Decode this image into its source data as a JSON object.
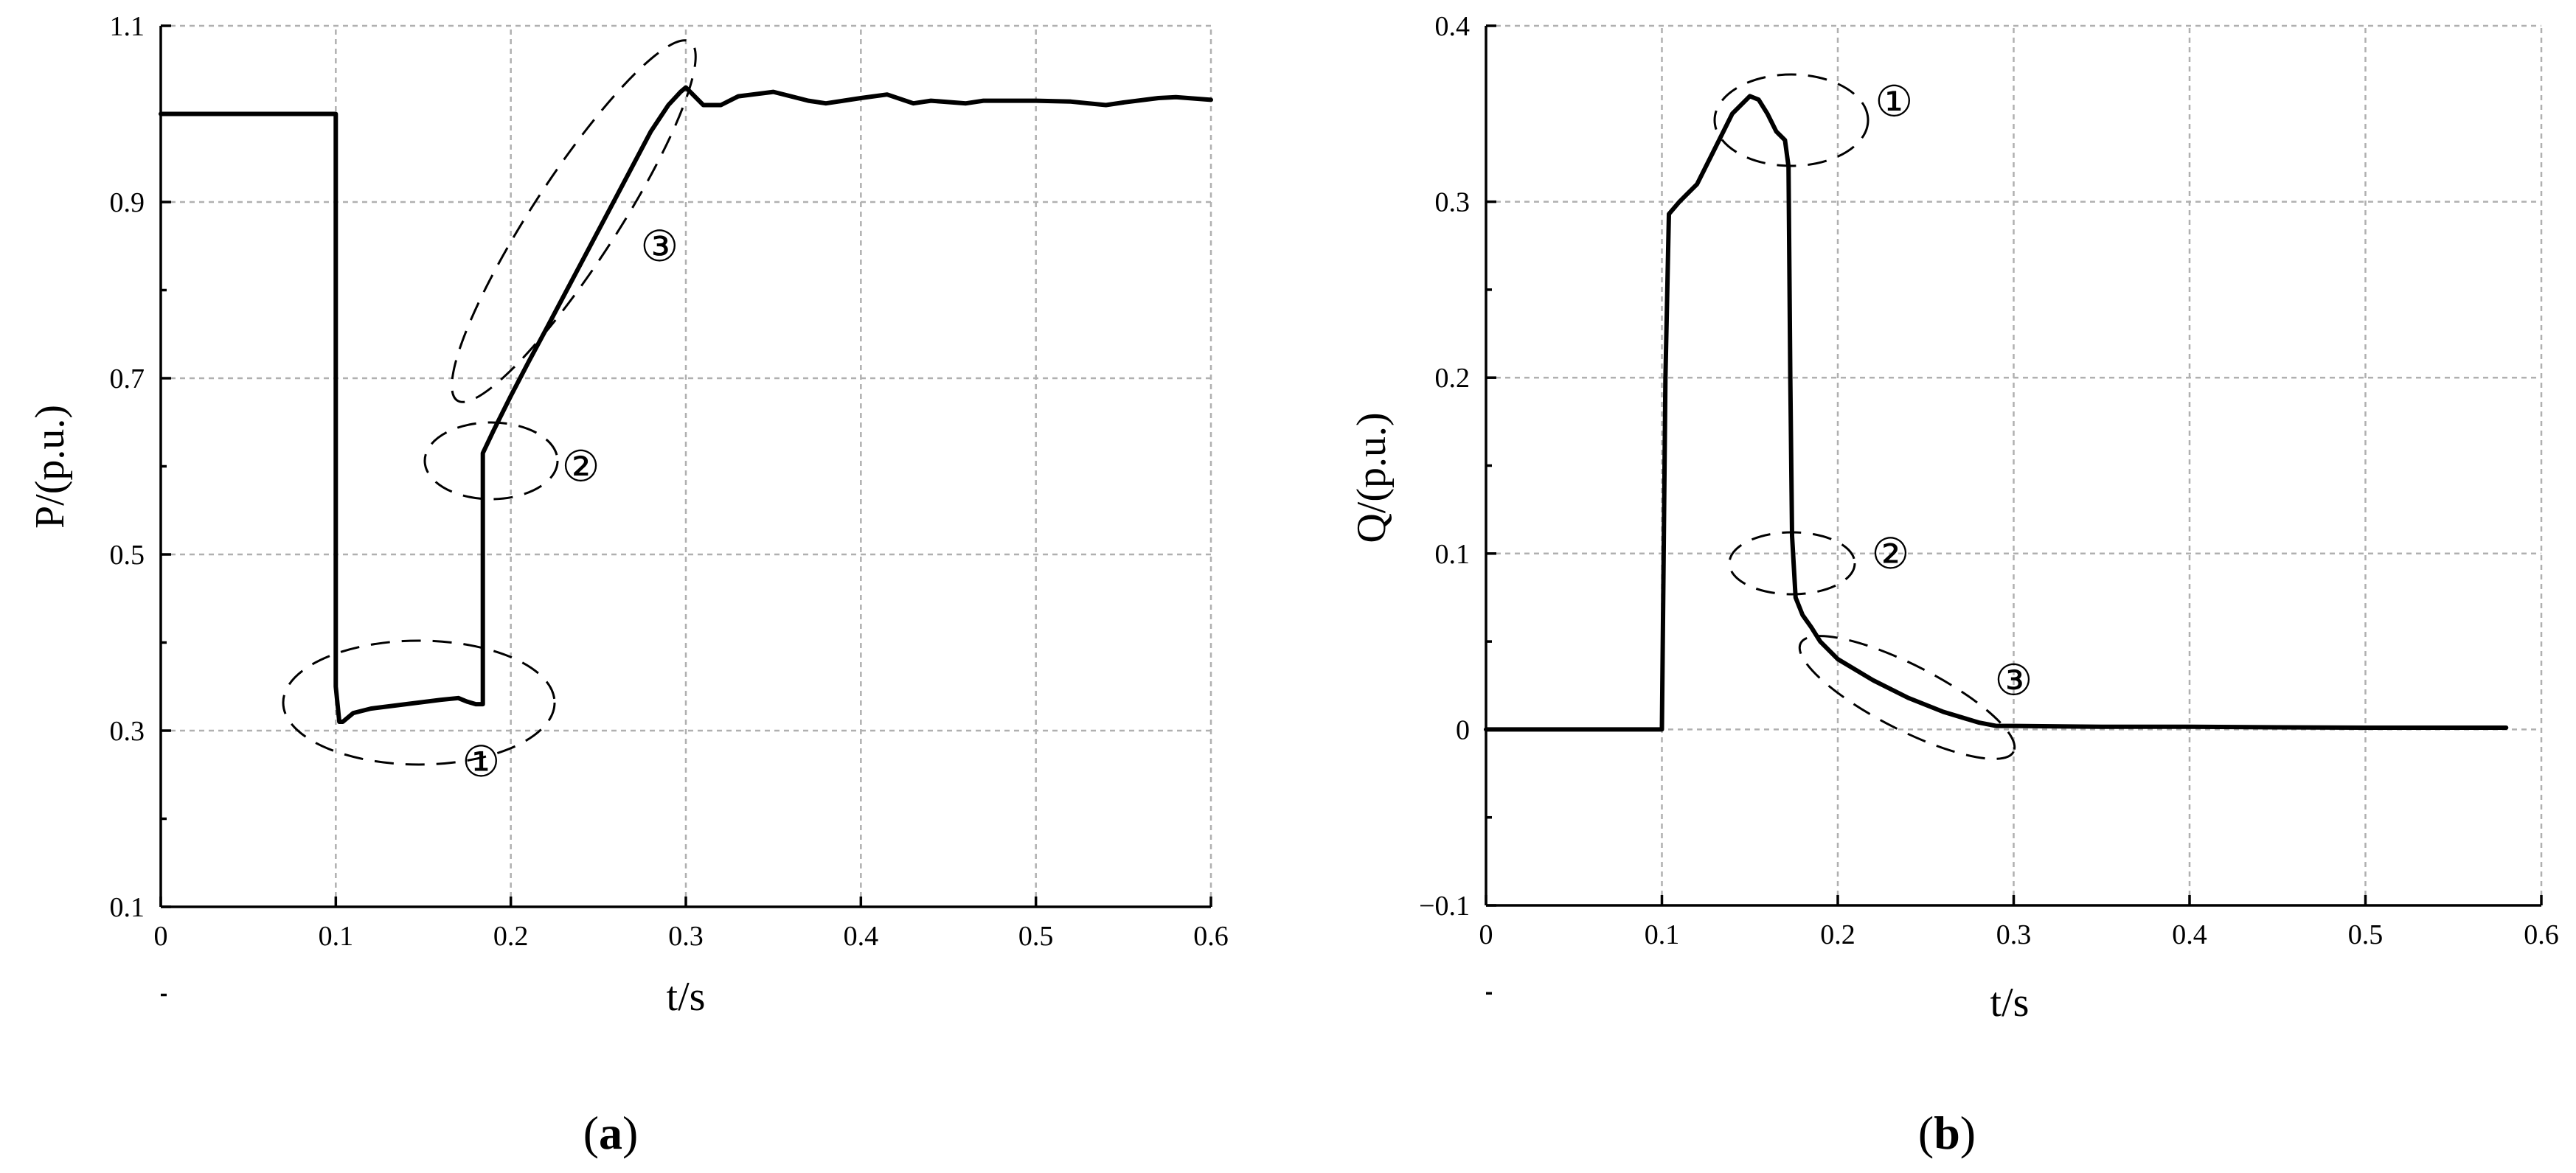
{
  "chart_data": [
    {
      "type": "line",
      "panel_label_prefix": "(",
      "panel_label": "a",
      "panel_label_suffix": ")",
      "xlabel": "t/s",
      "ylabel": "P/(p.u.)",
      "xlim": [
        0,
        0.6
      ],
      "ylim": [
        0.1,
        1.1
      ],
      "xticks": [
        "0",
        "0.1",
        "0.2",
        "0.3",
        "0.4",
        "0.5",
        "0.6"
      ],
      "yticks": [
        "0.1",
        "0.3",
        "0.5",
        "0.7",
        "0.9",
        "1.1"
      ],
      "grid": true,
      "series": [
        {
          "x": [
            0,
            0.1,
            0.1,
            0.102,
            0.104,
            0.11,
            0.12,
            0.14,
            0.16,
            0.17,
            0.175,
            0.18,
            0.184,
            0.184,
            0.19,
            0.2,
            0.21,
            0.22,
            0.24,
            0.26,
            0.28,
            0.29,
            0.297,
            0.3,
            0.305,
            0.31,
            0.32,
            0.33,
            0.35,
            0.37,
            0.38,
            0.4,
            0.415,
            0.43,
            0.44,
            0.46,
            0.47,
            0.5,
            0.52,
            0.54,
            0.55,
            0.57,
            0.58,
            0.6
          ],
          "y": [
            1.0,
            1.0,
            0.35,
            0.31,
            0.31,
            0.32,
            0.325,
            0.33,
            0.335,
            0.337,
            0.333,
            0.33,
            0.33,
            0.615,
            0.64,
            0.68,
            0.718,
            0.755,
            0.83,
            0.905,
            0.98,
            1.01,
            1.025,
            1.03,
            1.02,
            1.01,
            1.01,
            1.02,
            1.025,
            1.015,
            1.012,
            1.018,
            1.022,
            1.012,
            1.015,
            1.012,
            1.015,
            1.015,
            1.014,
            1.01,
            1.013,
            1.018,
            1.019,
            1.016
          ]
        }
      ],
      "annotations": [
        {
          "text": "①",
          "x": 0.183,
          "y": 0.265
        },
        {
          "text": "②",
          "x": 0.24,
          "y": 0.6
        },
        {
          "text": "③",
          "x": 0.285,
          "y": 0.85
        }
      ]
    },
    {
      "type": "line",
      "panel_label_prefix": "(",
      "panel_label": "b",
      "panel_label_suffix": ")",
      "xlabel": "t/s",
      "ylabel": "Q/(p.u.)",
      "xlim": [
        0,
        0.6
      ],
      "ylim": [
        -0.1,
        0.4
      ],
      "xticks": [
        "0",
        "0.1",
        "0.2",
        "0.3",
        "0.4",
        "0.5",
        "0.6"
      ],
      "yticks": [
        "−0.1",
        "0",
        "0.1",
        "0.2",
        "0.3",
        "0.4"
      ],
      "grid": true,
      "series": [
        {
          "x": [
            0,
            0.1,
            0.102,
            0.104,
            0.11,
            0.12,
            0.13,
            0.14,
            0.15,
            0.155,
            0.16,
            0.165,
            0.17,
            0.172,
            0.173,
            0.174,
            0.176,
            0.18,
            0.185,
            0.19,
            0.2,
            0.22,
            0.24,
            0.26,
            0.28,
            0.29,
            0.3,
            0.35,
            0.4,
            0.45,
            0.5,
            0.55,
            0.58
          ],
          "y": [
            0,
            0,
            0.2,
            0.293,
            0.3,
            0.31,
            0.33,
            0.35,
            0.36,
            0.358,
            0.35,
            0.34,
            0.335,
            0.32,
            0.2,
            0.11,
            0.075,
            0.065,
            0.058,
            0.05,
            0.04,
            0.028,
            0.018,
            0.01,
            0.004,
            0.002,
            0.002,
            0.0015,
            0.0015,
            0.0012,
            0.001,
            0.001,
            0.001
          ]
        }
      ],
      "annotations": [
        {
          "text": "①",
          "x": 0.232,
          "y": 0.357
        },
        {
          "text": "②",
          "x": 0.23,
          "y": 0.1
        },
        {
          "text": "③",
          "x": 0.3,
          "y": 0.028
        }
      ]
    }
  ]
}
